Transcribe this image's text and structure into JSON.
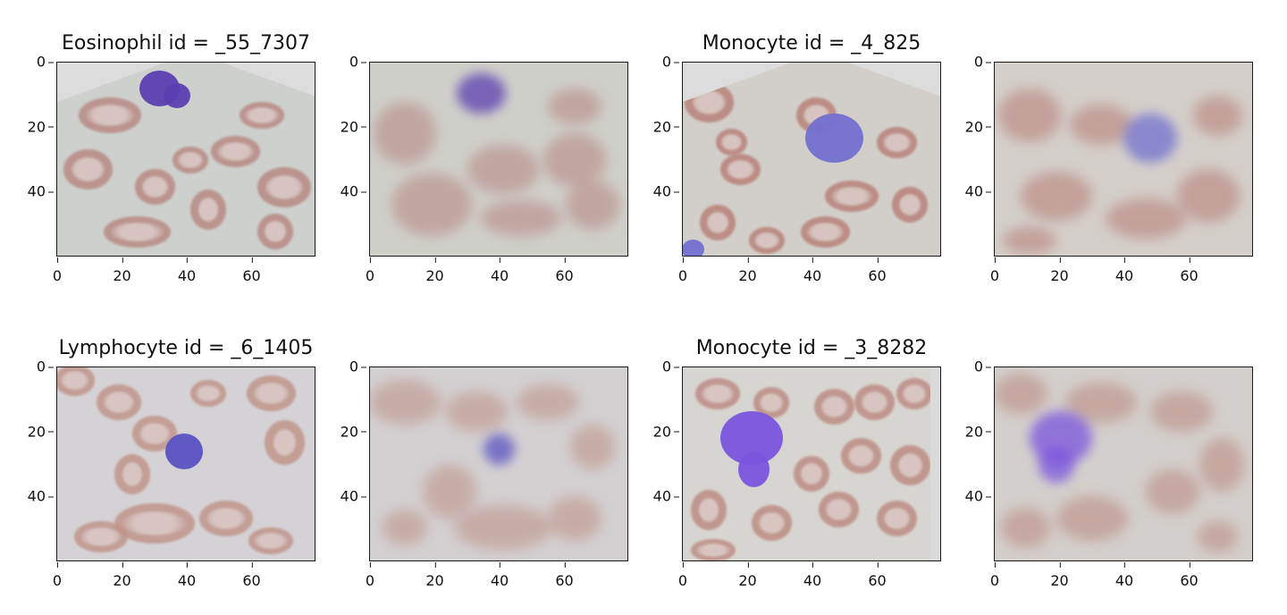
{
  "chart_data": [
    {
      "type": "image",
      "title": "Eosinophil id = _55_7307",
      "variant": "original",
      "xticks": [
        0,
        20,
        40,
        60
      ],
      "yticks": [
        0,
        20,
        40
      ],
      "xlim": [
        0,
        80
      ],
      "ylim": [
        60,
        0
      ],
      "colors": {
        "background": "#cfd3d0",
        "rbc": "#b98a84",
        "nucleus": "#5b3fb0"
      }
    },
    {
      "type": "image",
      "title": "",
      "variant": "blurred",
      "xticks": [
        0,
        20,
        40,
        60
      ],
      "yticks": [
        0,
        20,
        40
      ],
      "xlim": [
        0,
        80
      ],
      "ylim": [
        60,
        0
      ]
    },
    {
      "type": "image",
      "title": "Monocyte id = _4_825",
      "variant": "original",
      "xticks": [
        0,
        20,
        40,
        60
      ],
      "yticks": [
        0,
        20,
        40
      ],
      "xlim": [
        0,
        80
      ],
      "ylim": [
        60,
        0
      ],
      "colors": {
        "background": "#d4d2cd",
        "rbc": "#b88279",
        "nucleus": "#7270d0"
      }
    },
    {
      "type": "image",
      "title": "",
      "variant": "blurred",
      "xticks": [
        0,
        20,
        40,
        60
      ],
      "yticks": [
        0,
        20,
        40
      ],
      "xlim": [
        0,
        80
      ],
      "ylim": [
        60,
        0
      ]
    },
    {
      "type": "image",
      "title": "Lymphocyte id = _6_1405",
      "variant": "original",
      "xticks": [
        0,
        20,
        40,
        60
      ],
      "yticks": [
        0,
        20,
        40
      ],
      "xlim": [
        0,
        80
      ],
      "ylim": [
        60,
        0
      ],
      "colors": {
        "background": "#d6d2d6",
        "rbc": "#c0958a",
        "nucleus": "#5a52c2"
      }
    },
    {
      "type": "image",
      "title": "",
      "variant": "blurred",
      "xticks": [
        0,
        20,
        40,
        60
      ],
      "yticks": [
        0,
        20,
        40
      ],
      "xlim": [
        0,
        80
      ],
      "ylim": [
        60,
        0
      ]
    },
    {
      "type": "image",
      "title": "Monocyte id = _3_8282",
      "variant": "original",
      "xticks": [
        0,
        20,
        40,
        60
      ],
      "yticks": [
        0,
        20,
        40
      ],
      "xlim": [
        0,
        80
      ],
      "ylim": [
        60,
        0
      ],
      "colors": {
        "background": "#d8d6d2",
        "rbc": "#bd8d84",
        "nucleus": "#7a55de"
      }
    },
    {
      "type": "image",
      "title": "",
      "variant": "blurred",
      "xticks": [
        0,
        20,
        40,
        60
      ],
      "yticks": [
        0,
        20,
        40
      ],
      "xlim": [
        0,
        80
      ],
      "ylim": [
        60,
        0
      ]
    }
  ]
}
